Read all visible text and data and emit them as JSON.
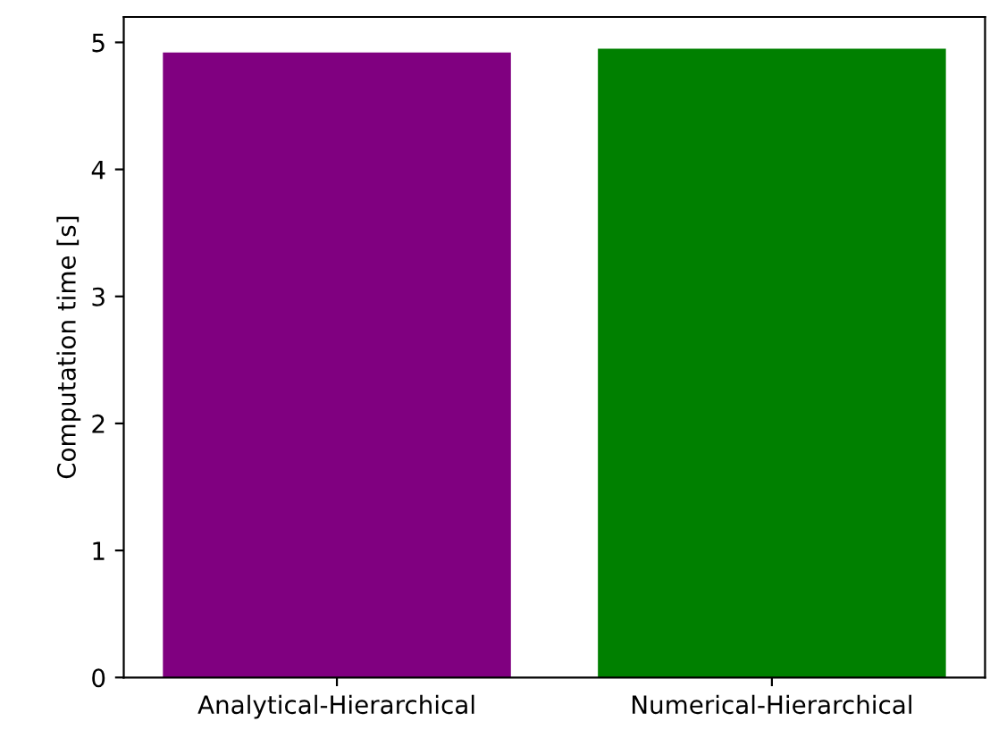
{
  "chart_data": {
    "type": "bar",
    "ylabel": "Computation time [s]",
    "categories": [
      "Analytical-Hierarchical",
      "Numerical-Hierarchical"
    ],
    "values": [
      4.92,
      4.95
    ],
    "colors": [
      "#800080",
      "#008000"
    ],
    "ylim": [
      0,
      5.2
    ],
    "yticks": [
      0,
      1,
      2,
      3,
      4,
      5
    ],
    "grid": false
  }
}
